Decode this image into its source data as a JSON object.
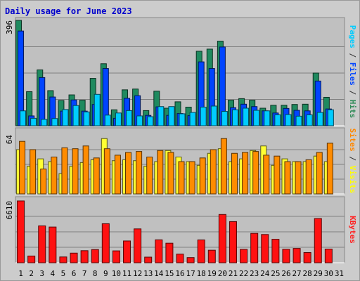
{
  "chart_data": {
    "type": "bar",
    "title": "Daily usage for June 2023",
    "days": [
      "1",
      "2",
      "3",
      "4",
      "5",
      "6",
      "7",
      "8",
      "9",
      "10",
      "11",
      "12",
      "13",
      "14",
      "15",
      "16",
      "17",
      "18",
      "19",
      "20",
      "21",
      "22",
      "23",
      "24",
      "25",
      "26",
      "27",
      "28",
      "29",
      "30",
      "31"
    ],
    "weekend_days": [
      "3",
      "4",
      "10",
      "11",
      "17",
      "18",
      "24",
      "25",
      "31"
    ],
    "panels": [
      {
        "id": "top",
        "ymax": 396,
        "ymax_label": "396",
        "label_parts": [
          {
            "text": "Pages",
            "color": "#00ccff"
          },
          {
            "text": " / ",
            "color": "#333333"
          },
          {
            "text": "Files",
            "color": "#0044ff"
          },
          {
            "text": " / ",
            "color": "#333333"
          },
          {
            "text": "Hits",
            "color": "#2e8b57"
          }
        ],
        "series": [
          {
            "name": "Hits",
            "color": "#1f8a5f",
            "values": [
              396,
              128,
              210,
              132,
              95,
              116,
              96,
              178,
              233,
              60,
              135,
              138,
              57,
              130,
              66,
              90,
              70,
              280,
              288,
              318,
              96,
              102,
              96,
              66,
              77,
              77,
              80,
              81,
              198,
              107,
              null
            ]
          },
          {
            "name": "Files",
            "color": "#0044ff",
            "values": [
              356,
              37,
              181,
              108,
              55,
              97,
              55,
              80,
              215,
              28,
              103,
              113,
              39,
              71,
              39,
              46,
              38,
              240,
              215,
              296,
              68,
              81,
              72,
              56,
              48,
              65,
              58,
              56,
              168,
              63,
              null
            ]
          },
          {
            "name": "Pages",
            "color": "#00ccff",
            "values": [
              56,
              28,
              24,
              27,
              61,
              76,
              52,
              118,
              40,
              48,
              57,
              37,
              34,
              72,
              72,
              45,
              50,
              70,
              74,
              54,
              60,
              66,
              58,
              56,
              41,
              42,
              36,
              41,
              50,
              60,
              null
            ]
          }
        ]
      },
      {
        "id": "middle",
        "ymax": 64,
        "ymax_label": "64",
        "label_parts": [
          {
            "text": "Sites",
            "color": "#ff8800"
          },
          {
            "text": " / ",
            "color": "#333333"
          },
          {
            "text": "Visits",
            "color": "#ffff00"
          }
        ],
        "series": [
          {
            "name": "Visits",
            "color": "#ffff33",
            "values": [
              48,
              30,
              38,
              35,
              22,
              30,
              34,
              37,
              60,
              36,
              37,
              36,
              30,
              35,
              47,
              40,
              35,
              31,
              44,
              49,
              35,
              38,
              47,
              52,
              31,
              38,
              35,
              35,
              41,
              35,
              null
            ]
          },
          {
            "name": "Sites",
            "color": "#ff8c00",
            "values": [
              57,
              48,
              27,
              40,
              50,
              49,
              52,
              39,
              49,
              42,
              45,
              46,
              40,
              47,
              45,
              35,
              35,
              39,
              48,
              60,
              44,
              45,
              46,
              42,
              41,
              35,
              35,
              37,
              45,
              55,
              null
            ]
          }
        ]
      },
      {
        "id": "bottom",
        "ymax": 6610,
        "ymax_label": "6610",
        "label_parts": [
          {
            "text": "KBytes",
            "color": "#ff2222"
          }
        ],
        "series": [
          {
            "name": "KBytes",
            "color": "#ff1111",
            "values": [
              6610,
              720,
              3940,
              3820,
              620,
              1030,
              1290,
              1410,
              4170,
              1270,
              2330,
              3620,
              600,
              2450,
              2090,
              920,
              550,
              2440,
              1340,
              5160,
              4400,
              1430,
              3140,
              3020,
              2510,
              1440,
              1530,
              1090,
              4730,
              1460,
              null
            ]
          }
        ]
      }
    ]
  }
}
